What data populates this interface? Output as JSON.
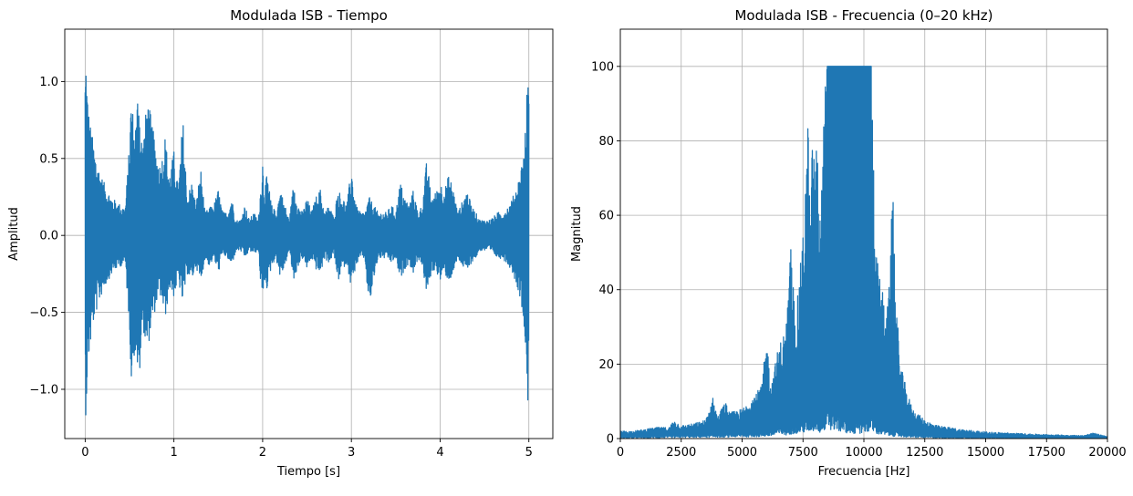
{
  "chart_data": [
    {
      "type": "line",
      "title": "Modulada ISB - Tiempo",
      "xlabel": "Tiempo [s]",
      "ylabel": "Amplitud",
      "xlim": [
        -0.23,
        5.27
      ],
      "ylim": [
        -1.32,
        1.34
      ],
      "grid": true,
      "color": "#1f77b4",
      "xticks": [
        0,
        1,
        2,
        3,
        4,
        5
      ],
      "xtick_labels": [
        "0",
        "1",
        "2",
        "3",
        "4",
        "5"
      ],
      "yticks": [
        -1.0,
        -0.5,
        0.0,
        0.5,
        1.0
      ],
      "ytick_labels": [
        "−1.0",
        "−0.5",
        "0.0",
        "0.5",
        "1.0"
      ],
      "envelope": {
        "x": [
          0.0,
          0.01,
          0.02,
          0.04,
          0.06,
          0.1,
          0.15,
          0.2,
          0.25,
          0.3,
          0.35,
          0.4,
          0.45,
          0.5,
          0.52,
          0.55,
          0.58,
          0.6,
          0.62,
          0.65,
          0.7,
          0.75,
          0.8,
          0.85,
          0.9,
          0.95,
          1.0,
          1.05,
          1.1,
          1.15,
          1.2,
          1.25,
          1.3,
          1.35,
          1.4,
          1.45,
          1.5,
          1.55,
          1.6,
          1.65,
          1.7,
          1.75,
          1.8,
          1.85,
          1.9,
          1.95,
          2.0,
          2.02,
          2.05,
          2.1,
          2.15,
          2.2,
          2.25,
          2.3,
          2.35,
          2.4,
          2.45,
          2.5,
          2.55,
          2.6,
          2.65,
          2.7,
          2.75,
          2.8,
          2.85,
          2.9,
          2.95,
          3.0,
          3.05,
          3.1,
          3.15,
          3.2,
          3.25,
          3.3,
          3.35,
          3.4,
          3.45,
          3.5,
          3.55,
          3.6,
          3.65,
          3.7,
          3.75,
          3.8,
          3.85,
          3.9,
          3.95,
          4.0,
          4.05,
          4.1,
          4.15,
          4.2,
          4.25,
          4.3,
          4.35,
          4.4,
          4.45,
          4.5,
          4.55,
          4.6,
          4.65,
          4.7,
          4.75,
          4.8,
          4.85,
          4.9,
          4.95,
          4.97,
          4.99,
          5.0
        ],
        "upper": [
          1.1,
          1.22,
          1.0,
          0.82,
          0.72,
          0.58,
          0.45,
          0.36,
          0.3,
          0.25,
          0.22,
          0.2,
          0.18,
          0.6,
          0.96,
          0.7,
          0.78,
          1.1,
          0.72,
          0.6,
          0.9,
          0.75,
          0.55,
          0.45,
          0.65,
          0.4,
          0.55,
          0.3,
          0.78,
          0.25,
          0.35,
          0.2,
          0.45,
          0.15,
          0.18,
          0.2,
          0.3,
          0.15,
          0.15,
          0.25,
          0.1,
          0.1,
          0.2,
          0.1,
          0.15,
          0.1,
          0.5,
          0.3,
          0.4,
          0.2,
          0.15,
          0.3,
          0.2,
          0.1,
          0.35,
          0.2,
          0.15,
          0.25,
          0.15,
          0.25,
          0.3,
          0.15,
          0.2,
          0.12,
          0.3,
          0.25,
          0.2,
          0.45,
          0.2,
          0.15,
          0.15,
          0.25,
          0.2,
          0.15,
          0.15,
          0.15,
          0.2,
          0.15,
          0.35,
          0.25,
          0.2,
          0.3,
          0.15,
          0.2,
          0.5,
          0.25,
          0.28,
          0.35,
          0.3,
          0.4,
          0.3,
          0.15,
          0.22,
          0.3,
          0.2,
          0.15,
          0.1,
          0.1,
          0.1,
          0.12,
          0.15,
          0.15,
          0.18,
          0.22,
          0.3,
          0.4,
          0.6,
          0.8,
          1.16,
          0.9
        ],
        "lower": [
          -1.1,
          -1.2,
          -1.0,
          -0.82,
          -0.72,
          -0.55,
          -0.45,
          -0.36,
          -0.3,
          -0.25,
          -0.22,
          -0.2,
          -0.18,
          -0.6,
          -0.96,
          -0.8,
          -0.75,
          -1.08,
          -0.85,
          -0.6,
          -0.75,
          -0.6,
          -0.45,
          -0.4,
          -0.55,
          -0.35,
          -0.4,
          -0.3,
          -0.45,
          -0.25,
          -0.3,
          -0.2,
          -0.32,
          -0.15,
          -0.2,
          -0.15,
          -0.25,
          -0.12,
          -0.15,
          -0.2,
          -0.1,
          -0.1,
          -0.15,
          -0.1,
          -0.12,
          -0.1,
          -0.48,
          -0.3,
          -0.35,
          -0.2,
          -0.15,
          -0.28,
          -0.2,
          -0.1,
          -0.3,
          -0.2,
          -0.15,
          -0.22,
          -0.15,
          -0.22,
          -0.25,
          -0.15,
          -0.18,
          -0.12,
          -0.3,
          -0.22,
          -0.18,
          -0.35,
          -0.2,
          -0.15,
          -0.15,
          -0.48,
          -0.3,
          -0.15,
          -0.15,
          -0.15,
          -0.18,
          -0.15,
          -0.3,
          -0.22,
          -0.18,
          -0.25,
          -0.15,
          -0.2,
          -0.4,
          -0.25,
          -0.22,
          -0.3,
          -0.25,
          -0.3,
          -0.25,
          -0.15,
          -0.2,
          -0.25,
          -0.18,
          -0.15,
          -0.1,
          -0.1,
          -0.1,
          -0.12,
          -0.15,
          -0.15,
          -0.18,
          -0.22,
          -0.3,
          -0.4,
          -0.6,
          -0.8,
          -1.16,
          -0.9
        ]
      }
    },
    {
      "type": "line",
      "title": "Modulada ISB - Frecuencia (0–20 kHz)",
      "xlabel": "Frecuencia [Hz]",
      "ylabel": "Magnitud",
      "xlim": [
        0,
        20000
      ],
      "ylim": [
        0,
        110
      ],
      "grid": true,
      "color": "#1f77b4",
      "xticks": [
        0,
        2500,
        5000,
        7500,
        10000,
        12500,
        15000,
        17500,
        20000
      ],
      "xtick_labels": [
        "0",
        "2500",
        "5000",
        "7500",
        "10000",
        "12500",
        "15000",
        "17500",
        "20000"
      ],
      "yticks": [
        0,
        20,
        40,
        60,
        80,
        100
      ],
      "ytick_labels": [
        "0",
        "20",
        "40",
        "60",
        "80",
        "100"
      ],
      "spectrum": {
        "x": [
          0,
          500,
          1000,
          1500,
          2000,
          2200,
          2500,
          3000,
          3500,
          3800,
          4000,
          4300,
          4500,
          5000,
          5500,
          5800,
          6000,
          6200,
          6500,
          6800,
          7000,
          7200,
          7500,
          7700,
          7800,
          7900,
          8000,
          8100,
          8200,
          8300,
          8400,
          8500,
          9000,
          9500,
          10000,
          10300,
          10400,
          10500,
          10700,
          11000,
          11200,
          11300,
          11500,
          11800,
          12000,
          12500,
          13000,
          14000,
          15000,
          16000,
          17000,
          18000,
          19000,
          19400,
          20000
        ],
        "peak": [
          2,
          2,
          2.5,
          3,
          3,
          5,
          3.5,
          4,
          5,
          11,
          6,
          10,
          7,
          8,
          12,
          14,
          27,
          15,
          25,
          30,
          52,
          32,
          55,
          87,
          60,
          85,
          78,
          80,
          60,
          75,
          95,
          100,
          100,
          100,
          100,
          100,
          81,
          51,
          41,
          35,
          71,
          40,
          20,
          12,
          8,
          5,
          3.5,
          2.5,
          1.8,
          1.5,
          1.2,
          1.0,
          0.8,
          1.5,
          0.6
        ],
        "floor": [
          0.5,
          0.5,
          0.6,
          0.7,
          0.8,
          0.8,
          0.9,
          1.0,
          1.0,
          1.1,
          1.2,
          1.2,
          1.3,
          1.4,
          1.5,
          1.6,
          2,
          2,
          3,
          3,
          4,
          4,
          5,
          5,
          6,
          6,
          7,
          6,
          5,
          5,
          6,
          8,
          6,
          4,
          5,
          6,
          5,
          4,
          3,
          2.5,
          2,
          2,
          1.5,
          1.2,
          1.0,
          0.8,
          0.6,
          0.5,
          0.4,
          0.3,
          0.3,
          0.2,
          0.2,
          0.2,
          0.2
        ]
      }
    }
  ]
}
